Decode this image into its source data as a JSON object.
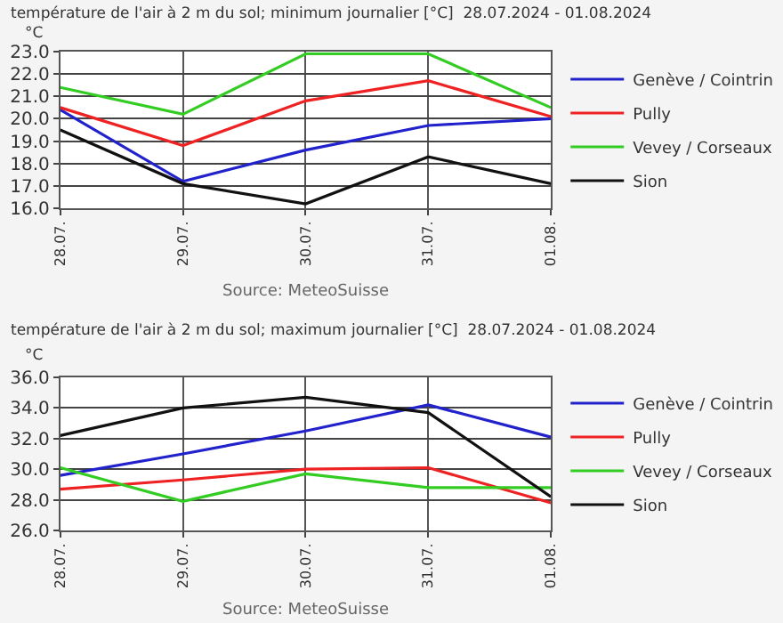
{
  "chart_data": [
    {
      "type": "line",
      "title": "température de l'air à 2 m du sol; minimum journalier [°C]  28.07.2024 - 01.08.2024",
      "ylabel": "°C",
      "categories": [
        "28.07.",
        "29.07.",
        "30.07.",
        "31.07.",
        "01.08."
      ],
      "series": [
        {
          "name": "Genève / Cointrin",
          "color": "#2222cc",
          "values": [
            20.4,
            17.2,
            18.6,
            19.7,
            20.0
          ]
        },
        {
          "name": "Pully",
          "color": "#ee2222",
          "values": [
            20.5,
            18.8,
            20.8,
            21.7,
            20.1
          ]
        },
        {
          "name": "Vevey / Corseaux",
          "color": "#33cc22",
          "values": [
            21.4,
            20.2,
            22.9,
            22.9,
            20.5
          ]
        },
        {
          "name": "Sion",
          "color": "#111111",
          "values": [
            19.5,
            17.1,
            16.2,
            18.3,
            17.1
          ]
        }
      ],
      "ylim": [
        16.0,
        23.0
      ],
      "yticks": [
        {
          "value": 16,
          "label": "16.0"
        },
        {
          "value": 17,
          "label": "17.0"
        },
        {
          "value": 18,
          "label": "18.0"
        },
        {
          "value": 19,
          "label": "19.0"
        },
        {
          "value": 20,
          "label": "20.0"
        },
        {
          "value": 21,
          "label": "21.0"
        },
        {
          "value": 22,
          "label": "22.0"
        },
        {
          "value": 23,
          "label": "23.0"
        }
      ],
      "grid": true,
      "legend": "right",
      "marker": "none",
      "line_style": "solid",
      "annotations": [
        "Source: MeteoSuisse"
      ]
    },
    {
      "type": "line",
      "title": "température de l'air à 2 m du sol; maximum journalier [°C]  28.07.2024 - 01.08.2024",
      "ylabel": "°C",
      "categories": [
        "28.07.",
        "29.07.",
        "30.07.",
        "31.07.",
        "01.08."
      ],
      "series": [
        {
          "name": "Genève / Cointrin",
          "color": "#2222cc",
          "values": [
            29.6,
            31.0,
            32.5,
            34.2,
            32.1
          ]
        },
        {
          "name": "Pully",
          "color": "#ee2222",
          "values": [
            28.7,
            29.3,
            30.0,
            30.1,
            27.8
          ]
        },
        {
          "name": "Vevey / Corseaux",
          "color": "#33cc22",
          "values": [
            30.1,
            27.9,
            29.7,
            28.8,
            28.8
          ]
        },
        {
          "name": "Sion",
          "color": "#111111",
          "values": [
            32.2,
            34.0,
            34.7,
            33.7,
            28.2
          ]
        }
      ],
      "ylim": [
        26.0,
        36.0
      ],
      "yticks": [
        {
          "value": 26,
          "label": "26.0"
        },
        {
          "value": 28,
          "label": "28.0"
        },
        {
          "value": 30,
          "label": "30.0"
        },
        {
          "value": 32,
          "label": "32.0"
        },
        {
          "value": 34,
          "label": "34.0"
        },
        {
          "value": 36,
          "label": "36.0"
        }
      ],
      "grid": true,
      "legend": "right",
      "marker": "none",
      "line_style": "solid",
      "annotations": [
        "Source: MeteoSuisse"
      ]
    }
  ]
}
